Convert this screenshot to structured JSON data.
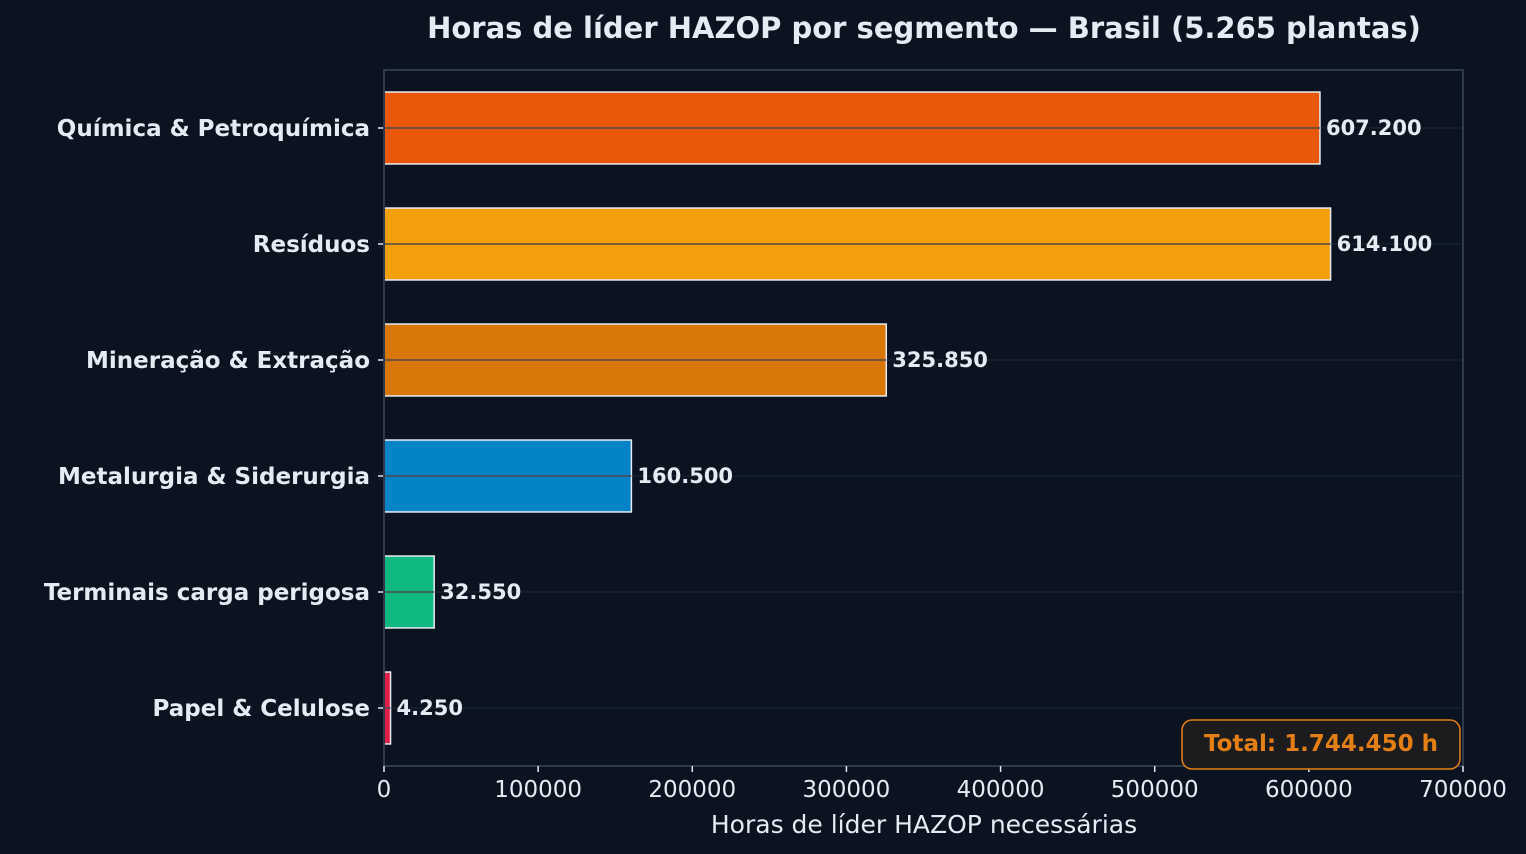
{
  "chart_data": {
    "type": "bar",
    "orientation": "horizontal",
    "title": "Horas de líder HAZOP por segmento — Brasil (5.265 plantas)",
    "xlabel": "Horas de líder HAZOP necessárias",
    "ylabel": "",
    "xlim": [
      0,
      700000
    ],
    "xticks": [
      0,
      100000,
      200000,
      300000,
      400000,
      500000,
      600000,
      700000
    ],
    "xtick_labels": [
      "0",
      "100000",
      "200000",
      "300000",
      "400000",
      "500000",
      "600000",
      "700000"
    ],
    "grid": "horizontal lines at categories",
    "categories": [
      "Química & Petroquímica",
      "Resíduos",
      "Mineração & Extração",
      "Metalurgia & Siderurgia",
      "Terminais carga perigosa",
      "Papel & Celulose"
    ],
    "values": [
      607200,
      614100,
      325850,
      160500,
      32550,
      4250
    ],
    "value_labels": [
      "607.200",
      "614.100",
      "325.850",
      "160.500",
      "32.550",
      "4.250"
    ],
    "colors": [
      "#ea580c",
      "#f59e0b",
      "#d97706",
      "#0284c7",
      "#10b981",
      "#e11d48"
    ],
    "annotation": "Total: 1.744.450 h",
    "annotation_color": "#e37f14"
  },
  "theme": {
    "background": "#0b1220",
    "text": "#e6ebf3",
    "frame": "#2e3a4b",
    "grid": "#16222f",
    "bar_edge": "#e8ecf2"
  }
}
